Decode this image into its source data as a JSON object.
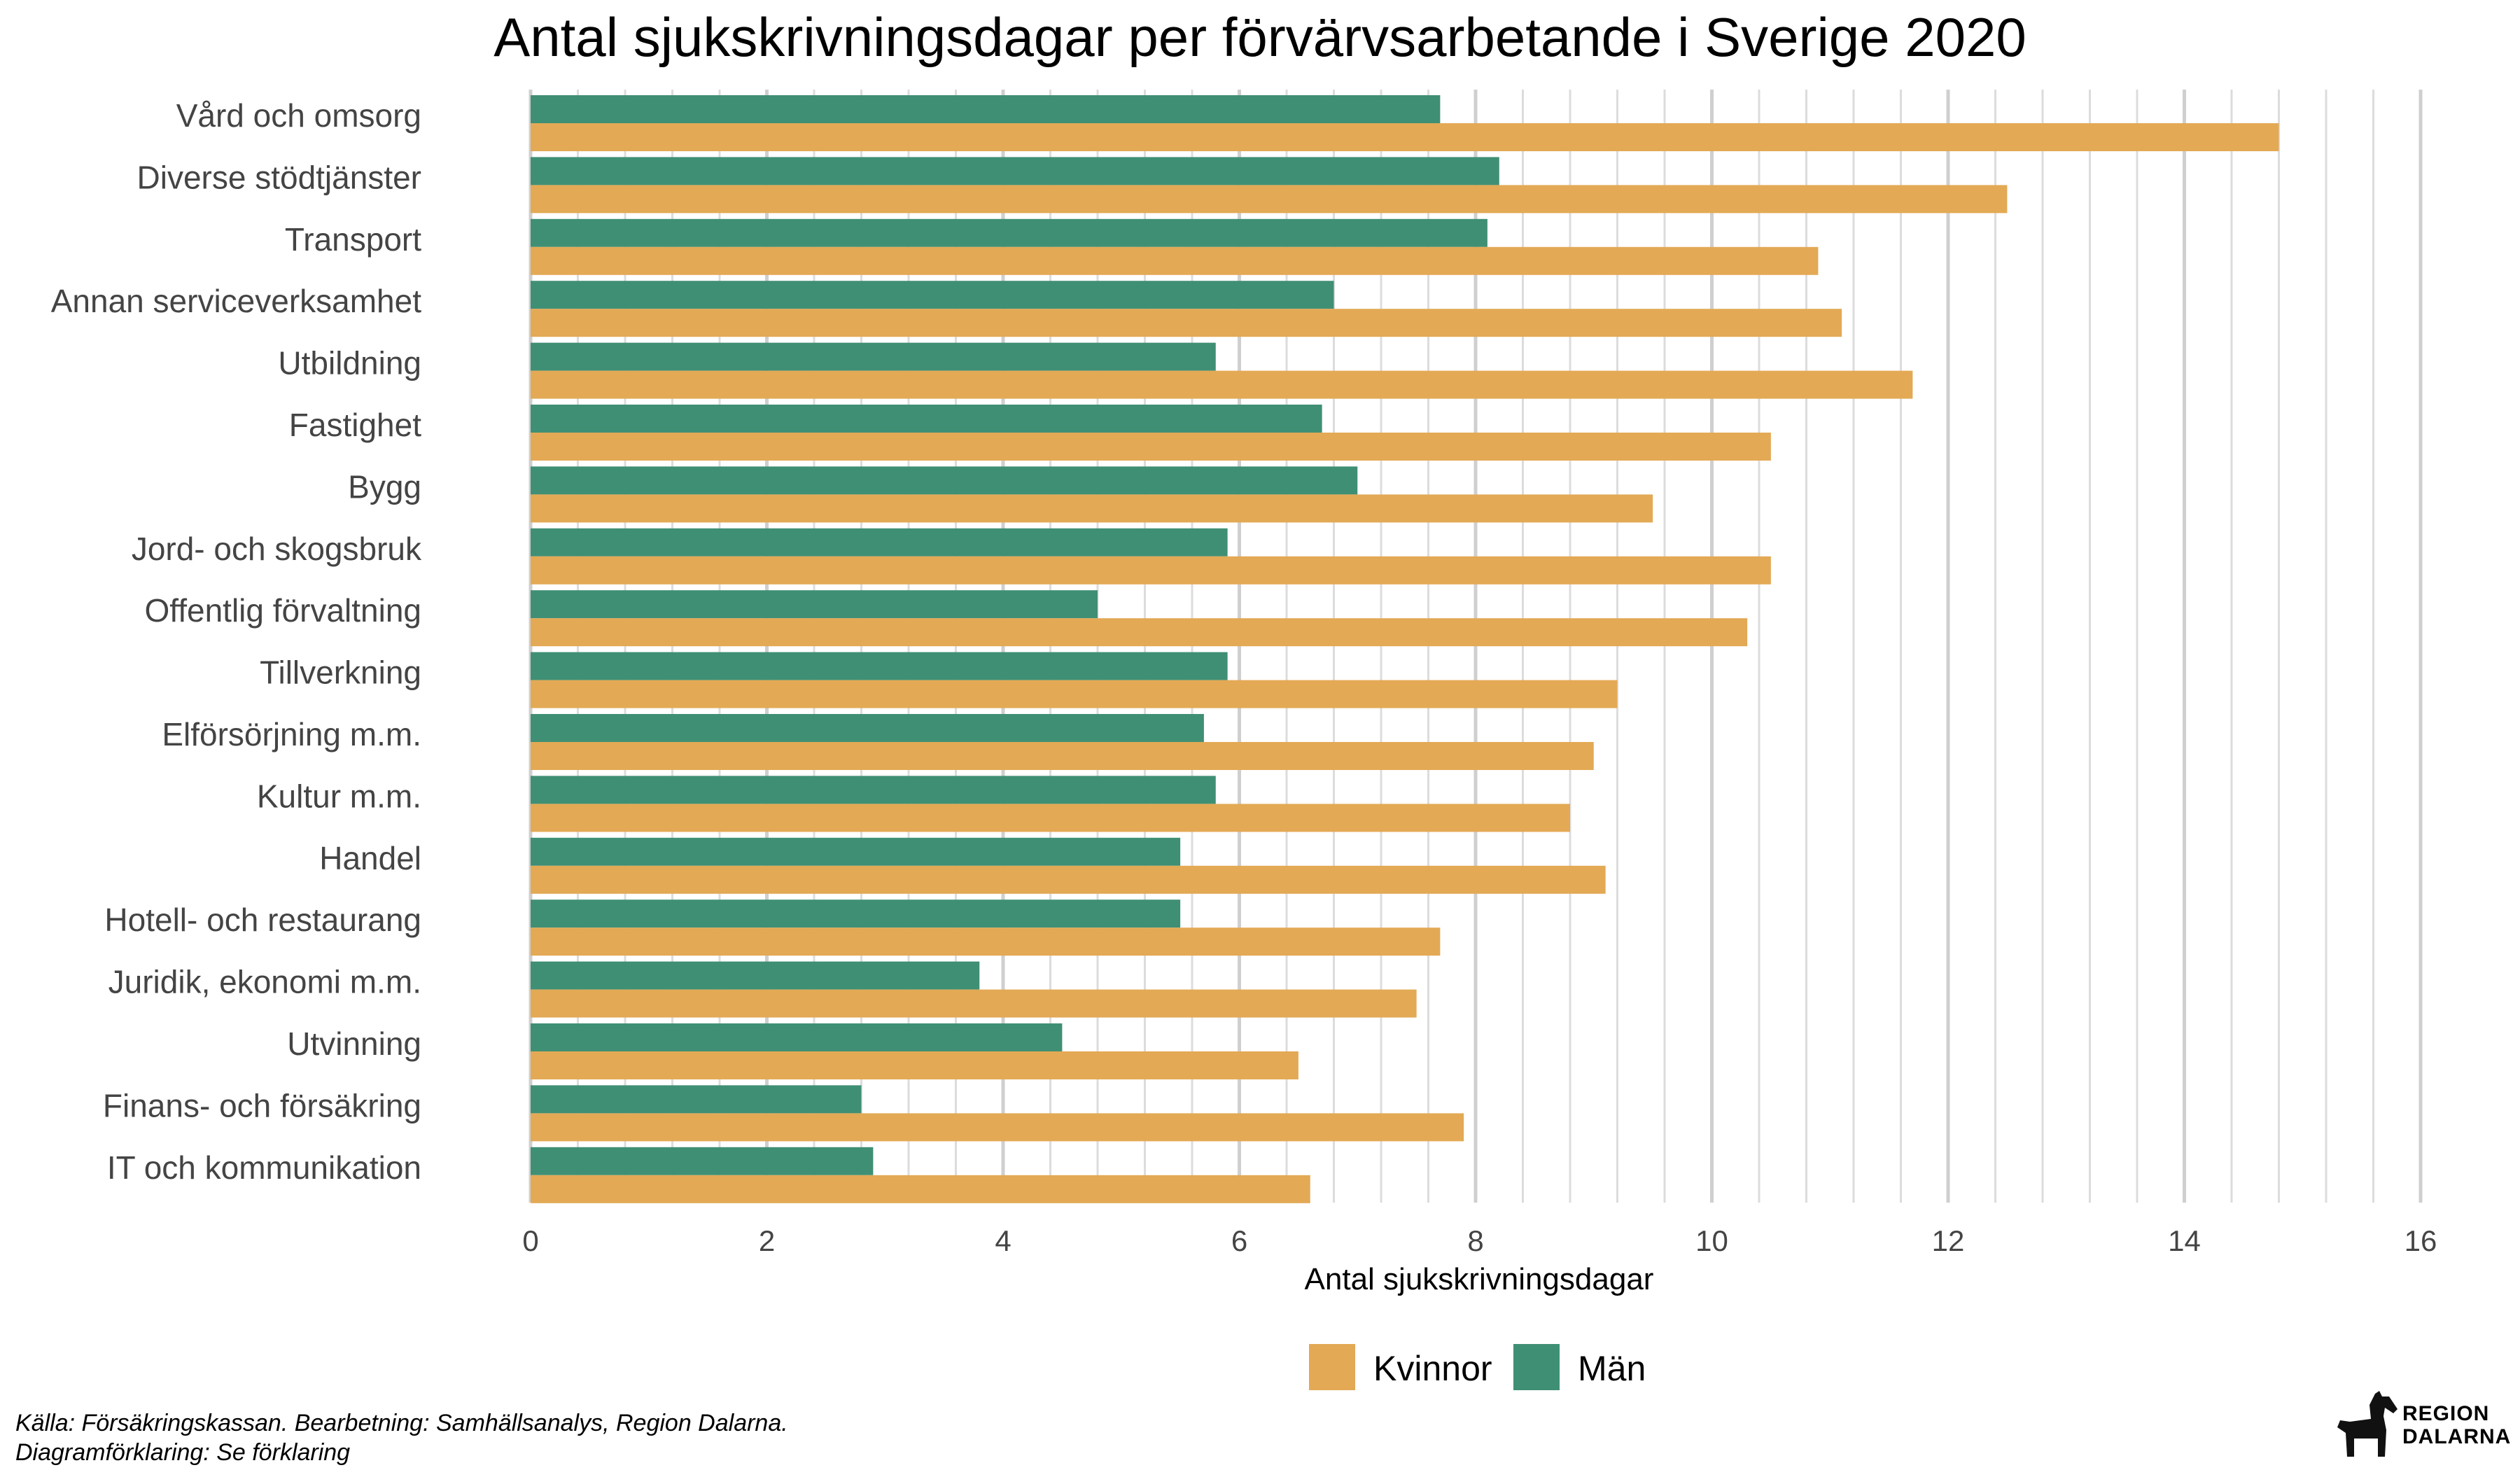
{
  "chart_data": {
    "type": "bar",
    "orientation": "horizontal",
    "title": "Antal sjukskrivningsdagar per förvärvsarbetande i Sverige 2020",
    "xlabel": "Antal sjukskrivningsdagar",
    "ylabel": "",
    "xlim": [
      0,
      16
    ],
    "xticks": [
      "0",
      "2",
      "4",
      "6",
      "8",
      "10",
      "12",
      "14",
      "16"
    ],
    "grid": true,
    "legend_position": "bottom",
    "categories": [
      "Vård och omsorg",
      "Diverse stödtjänster",
      "Transport",
      "Annan serviceverksamhet",
      "Utbildning",
      "Fastighet",
      "Bygg",
      "Jord- och skogsbruk",
      "Offentlig förvaltning",
      "Tillverkning",
      "Elförsörjning m.m.",
      "Kultur m.m.",
      "Handel",
      "Hotell- och restaurang",
      "Juridik, ekonomi m.m.",
      "Utvinning",
      "Finans- och försäkring",
      "IT och kommunikation"
    ],
    "series": [
      {
        "name": "Män",
        "color": "#3f8f74",
        "values": [
          7.7,
          8.2,
          8.1,
          6.8,
          5.8,
          6.7,
          7.0,
          5.9,
          4.8,
          5.9,
          5.7,
          5.8,
          5.5,
          5.5,
          3.8,
          4.5,
          2.8,
          2.9
        ]
      },
      {
        "name": "Kvinnor",
        "color": "#e3a955",
        "values": [
          14.8,
          12.5,
          10.9,
          11.1,
          11.7,
          10.5,
          9.5,
          10.5,
          10.3,
          9.2,
          9.0,
          8.8,
          9.1,
          7.7,
          7.5,
          6.5,
          7.9,
          6.6
        ]
      }
    ],
    "legend_order": [
      "Kvinnor",
      "Män"
    ]
  },
  "caption": {
    "line1": "Källa: Försäkringskassan. Bearbetning: Samhällsanalys, Region Dalarna.",
    "line2": "Diagramförklaring: Se förklaring"
  },
  "logo": {
    "line1": "REGION",
    "line2": "DALARNA"
  }
}
